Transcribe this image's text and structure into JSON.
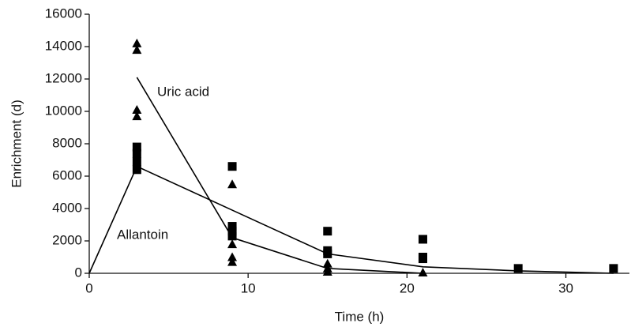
{
  "chart_data": {
    "type": "scatter",
    "xlabel": "Time (h)",
    "ylabel": "Enrichment (d)",
    "xlim": [
      0,
      34
    ],
    "xticks": [
      0,
      10,
      20,
      30
    ],
    "ylim": [
      0,
      16000
    ],
    "yticks": [
      0,
      2000,
      4000,
      6000,
      8000,
      10000,
      12000,
      14000,
      16000
    ],
    "series": [
      {
        "name": "Uric acid",
        "marker": "triangle",
        "color": "#000000",
        "x": [
          3,
          3,
          3,
          3,
          9,
          9,
          9,
          9,
          15,
          15,
          15,
          21
        ],
        "values": [
          14200,
          13800,
          10100,
          9700,
          5500,
          1800,
          1000,
          700,
          600,
          300,
          100,
          50
        ],
        "line_x": [
          3,
          9,
          15,
          21
        ],
        "line_values": [
          12100,
          2200,
          300,
          0
        ]
      },
      {
        "name": "Allantoin",
        "marker": "square",
        "color": "#000000",
        "x": [
          3,
          3,
          3,
          3,
          9,
          9,
          9,
          9,
          15,
          15,
          15,
          21,
          21,
          21,
          27,
          33
        ],
        "values": [
          7800,
          7400,
          6900,
          6400,
          6600,
          2900,
          2600,
          2300,
          2600,
          1400,
          1200,
          1000,
          2100,
          900,
          300,
          300
        ],
        "line_x": [
          0,
          3,
          9,
          15,
          21,
          27,
          33
        ],
        "line_values": [
          0,
          6600,
          3900,
          1200,
          400,
          150,
          0
        ]
      }
    ]
  }
}
